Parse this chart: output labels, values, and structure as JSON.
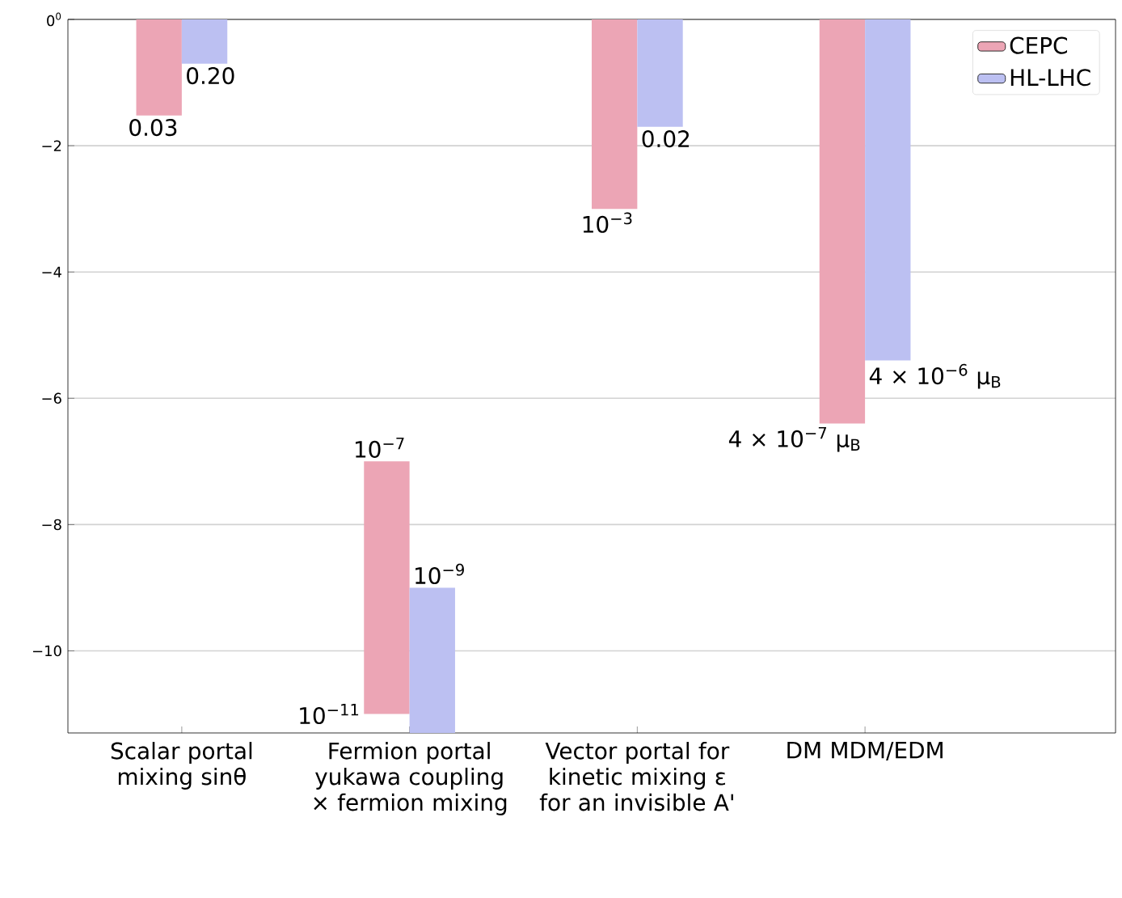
{
  "chart_data": {
    "type": "bar",
    "categories": [
      "Scalar portal mixing sinθ",
      "Fermion portal yukawa coupling × fermion mixing",
      "Vector portal for kinetic mixing ε for an invisible A'",
      "DM MDM/EDM"
    ],
    "series": [
      {
        "name": "CEPC",
        "color": "#eca5b5",
        "base": [
          0,
          -11,
          0,
          0
        ],
        "values": [
          -1.52,
          4,
          -3,
          -6.4
        ]
      },
      {
        "name": "HL-LHC",
        "color": "#bcc0f2",
        "base": [
          0,
          -11.3,
          0,
          0
        ],
        "values": [
          -0.7,
          2.3,
          -1.7,
          -5.4
        ]
      }
    ],
    "annotations": [
      {
        "text": "0.03",
        "x": "Scalar portal mixing sinθ",
        "y": -1.52
      },
      {
        "text": "0.20",
        "x": "Scalar portal mixing sinθ",
        "y": -0.7
      },
      {
        "text": "10$^{−7}$",
        "x": "Fermion portal yukawa coupling × fermion mixing",
        "y": -7
      },
      {
        "text": "10$^{−11}$",
        "x": "Fermion portal yukawa coupling × fermion mixing",
        "y": -11
      },
      {
        "text": "10$^{−9}$",
        "x": "Fermion portal yukawa coupling × fermion mixing",
        "y": -9
      },
      {
        "text": "10$^{−3}$",
        "x": "Vector portal for kinetic mixing ε for an invisible A'",
        "y": -3
      },
      {
        "text": "0.02",
        "x": "Vector portal for kinetic mixing ε for an invisible A'",
        "y": -1.7
      },
      {
        "text": "4 × 10$^{−7}$ μ$_{B}$",
        "x": "DM MDM/EDM",
        "y": -6.4
      },
      {
        "text": "4 × 10$^{−6}$ μ$_{B}$",
        "x": "DM MDM/EDM",
        "y": -5.4
      }
    ],
    "ylim": [
      -11.3,
      0
    ],
    "yticks": [
      {
        "value": 0,
        "label": "0$^{0}$"
      },
      {
        "value": -2,
        "label": "−2"
      },
      {
        "value": -4,
        "label": "−4"
      },
      {
        "value": -6,
        "label": "−6"
      },
      {
        "value": -8,
        "label": "−8"
      },
      {
        "value": -10,
        "label": "−10"
      }
    ],
    "grid": "y",
    "legend": "top right"
  }
}
